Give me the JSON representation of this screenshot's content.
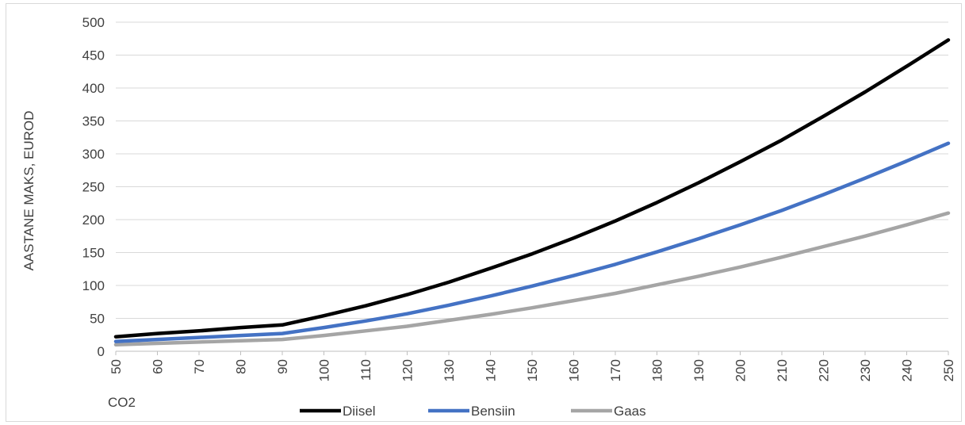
{
  "chart_data": {
    "type": "line",
    "xlabel": "CO2",
    "ylabel": "AASTANE MAKS, EUROD",
    "ylim": [
      0,
      500
    ],
    "yticks": [
      0,
      50,
      100,
      150,
      200,
      250,
      300,
      350,
      400,
      450,
      500
    ],
    "x": [
      50,
      60,
      70,
      80,
      90,
      100,
      110,
      120,
      130,
      140,
      150,
      160,
      170,
      180,
      190,
      200,
      210,
      220,
      230,
      240,
      250
    ],
    "grid": "horizontal",
    "legend_position": "bottom",
    "series": [
      {
        "name": "Diisel",
        "color": "#000000",
        "values": [
          22,
          27,
          31,
          36,
          40,
          54,
          69,
          86,
          105,
          126,
          148,
          172,
          198,
          226,
          256,
          288,
          321,
          357,
          394,
          433,
          473
        ]
      },
      {
        "name": "Bensiin",
        "color": "#4472c4",
        "values": [
          15,
          18,
          21,
          24,
          27,
          36,
          46,
          57,
          70,
          84,
          99,
          115,
          132,
          151,
          171,
          192,
          214,
          238,
          263,
          289,
          316
        ]
      },
      {
        "name": "Gaas",
        "color": "#a5a5a5",
        "values": [
          10,
          12,
          14,
          16,
          18,
          24,
          31,
          38,
          47,
          56,
          66,
          77,
          88,
          101,
          114,
          128,
          143,
          159,
          175,
          192,
          210
        ]
      }
    ]
  }
}
